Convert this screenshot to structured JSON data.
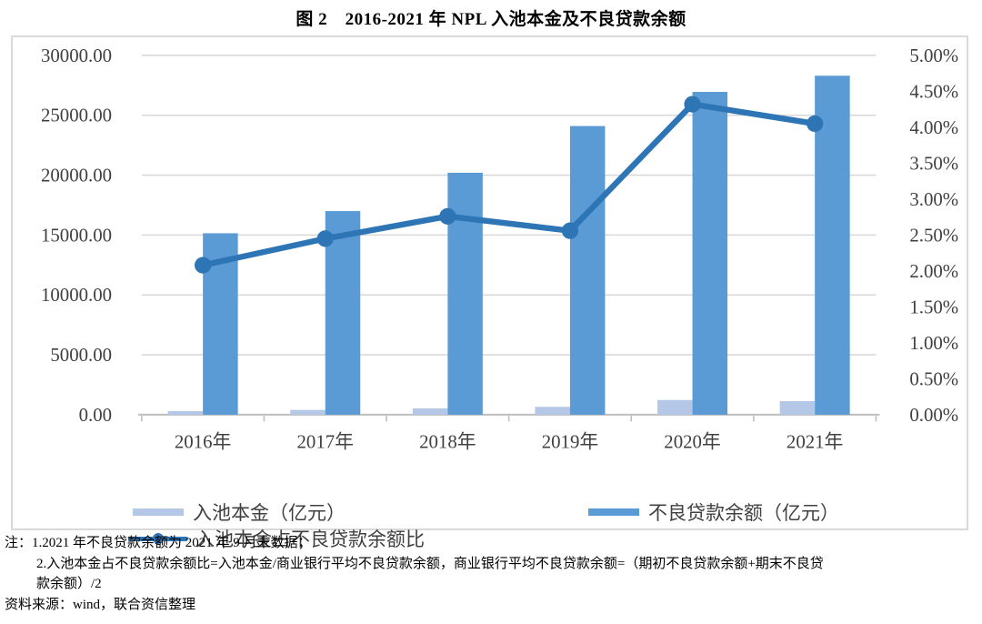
{
  "page": {
    "title": "图 2　2016-2021 年 NPL 入池本金及不良贷款余额"
  },
  "chart_data": {
    "type": "bar",
    "subtype": "combo-bar-line-dual-axis",
    "title": "图 2　2016-2021 年 NPL 入池本金及不良贷款余额",
    "categories": [
      "2016年",
      "2017年",
      "2018年",
      "2019年",
      "2020年",
      "2021年"
    ],
    "series": [
      {
        "name": "入池本金（亿元）",
        "type": "bar",
        "axis": "left",
        "color": "#b4c7e7",
        "values": [
          300,
          400,
          525,
          655,
          1230,
          1130
        ]
      },
      {
        "name": "不良贷款余额（亿元）",
        "type": "bar",
        "axis": "left",
        "color": "#5b9bd5",
        "values": [
          15150,
          17000,
          20200,
          24100,
          26950,
          28300
        ]
      },
      {
        "name": "入池本金占不良贷款余额比",
        "type": "line",
        "axis": "right",
        "color": "#2e75b6",
        "values": [
          2.08,
          2.45,
          2.76,
          2.56,
          4.32,
          4.05
        ]
      }
    ],
    "left_axis": {
      "min": 0,
      "max": 30000,
      "ticks": [
        "0.00",
        "5000.00",
        "10000.00",
        "15000.00",
        "20000.00",
        "25000.00",
        "30000.00"
      ]
    },
    "right_axis": {
      "min": 0,
      "max": 5,
      "ticks": [
        "0.00%",
        "0.50%",
        "1.00%",
        "1.50%",
        "2.00%",
        "2.50%",
        "3.00%",
        "3.50%",
        "4.00%",
        "4.50%",
        "5.00%"
      ]
    },
    "grid": "horizontal",
    "legend_position": "bottom",
    "colors": {
      "grid": "#d9d9d9",
      "axis": "#bfbfbf",
      "tick_text": "#404040"
    }
  },
  "notes": {
    "line1": "注：1.2021 年不良贷款余额为 2021 年 9 月末数据；",
    "line2": "2.入池本金占不良贷款余额比=入池本金/商业银行平均不良贷款余额，商业银行平均不良贷款余额=（期初不良贷款余额+期末不良贷",
    "line3": "款余额）/2",
    "line4": "资料来源：wind，联合资信整理"
  }
}
